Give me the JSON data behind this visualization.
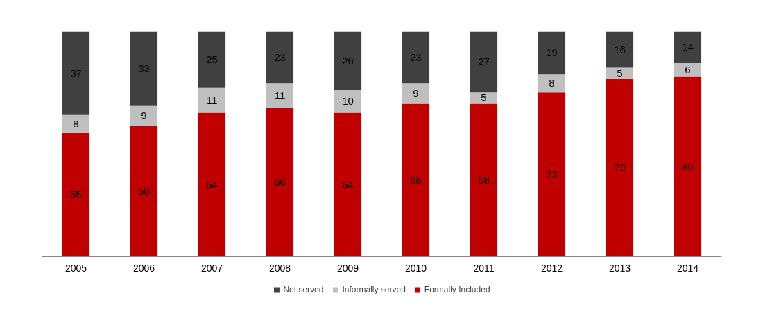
{
  "chart_data": {
    "type": "bar",
    "stacked": true,
    "categories": [
      "2005",
      "2006",
      "2007",
      "2008",
      "2009",
      "2010",
      "2011",
      "2012",
      "2013",
      "2014"
    ],
    "series": [
      {
        "name": "Formally Included",
        "color": "#c00000",
        "values": [
          55,
          58,
          64,
          66,
          64,
          68,
          68,
          73,
          79,
          80
        ]
      },
      {
        "name": "Informally served",
        "color": "#bfbfbf",
        "values": [
          8,
          9,
          11,
          11,
          10,
          9,
          5,
          8,
          5,
          6
        ]
      },
      {
        "name": "Not served",
        "color": "#404040",
        "values": [
          37,
          33,
          25,
          23,
          26,
          23,
          27,
          19,
          16,
          14
        ]
      }
    ],
    "data_labels": true,
    "legend": "bottom",
    "grid": false,
    "tick_labels": "x"
  }
}
